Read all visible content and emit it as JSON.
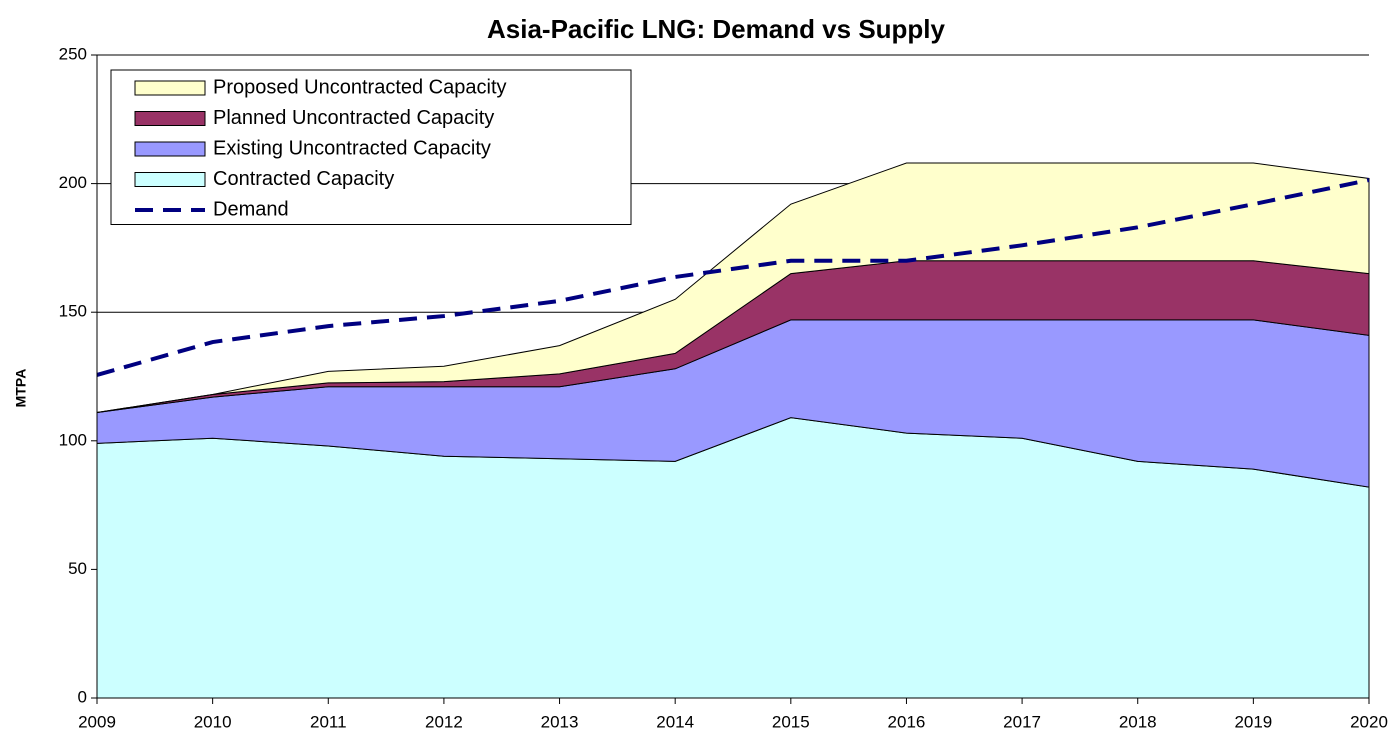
{
  "chart_data": {
    "type": "area",
    "stacked": true,
    "title": "Asia-Pacific LNG: Demand vs Supply",
    "ylabel": "MTPA",
    "x": [
      2009,
      2010,
      2011,
      2012,
      2013,
      2014,
      2015,
      2016,
      2017,
      2018,
      2019,
      2020
    ],
    "xlim": [
      2009,
      2020
    ],
    "xticks": [
      2009,
      2010,
      2011,
      2012,
      2013,
      2014,
      2015,
      2016,
      2017,
      2018,
      2019,
      2020
    ],
    "ylim": [
      0,
      250
    ],
    "yticks": [
      0,
      50,
      100,
      150,
      200,
      250
    ],
    "grid": true,
    "legend": "upper left",
    "series": [
      {
        "name": "Proposed Uncontracted Capacity",
        "color": "#ffffcc",
        "values": [
          0,
          0,
          4.5,
          6,
          11,
          21,
          27,
          38,
          38,
          38,
          38,
          37
        ]
      },
      {
        "name": "Planned Uncontracted Capacity",
        "color": "#993366",
        "values": [
          0,
          1,
          1.5,
          2,
          5,
          6,
          18,
          23,
          23,
          23,
          23,
          24
        ]
      },
      {
        "name": "Existing Uncontracted Capacity",
        "color": "#9999ff",
        "values": [
          12,
          16,
          23,
          27,
          28,
          36,
          38,
          44,
          46,
          55,
          58,
          59
        ]
      },
      {
        "name": "Contracted Capacity",
        "color": "#ccffff",
        "values": [
          99,
          101,
          98,
          94,
          93,
          92,
          109,
          103,
          101,
          92,
          89,
          82
        ]
      },
      {
        "name": "Demand",
        "type": "line",
        "dashed": true,
        "color": "#000080",
        "values": [
          125.6,
          138.4,
          144.6,
          148.5,
          154.4,
          163.7,
          170,
          170,
          176,
          183,
          192,
          201.4
        ]
      }
    ]
  }
}
